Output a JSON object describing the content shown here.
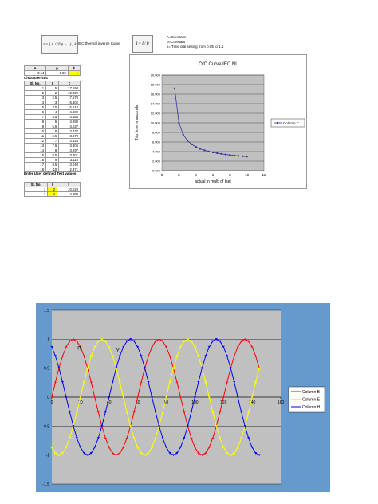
{
  "formulas": {
    "inverse_formula": "t = ( A / (I^p − 1) ) k",
    "inverse_label": "IEC thermal inverse Curve",
    "simple_formula": "I = I / Ir",
    "constants_note": [
      "A=Constant",
      "p=Constant",
      "k= Time dial setting from 0.05 to 1.1"
    ]
  },
  "params_table": {
    "headers": [
      "A",
      "p",
      "k"
    ],
    "values": [
      "0.14",
      "0.02",
      "1"
    ]
  },
  "char_table": {
    "label": "Characteristic",
    "headers": [
      "Sl. No.",
      "I",
      "t"
    ],
    "rows": [
      [
        "1",
        "1.5",
        "17.194"
      ],
      [
        "2",
        "2",
        "10.029"
      ],
      [
        "3",
        "2.5",
        "7.570"
      ],
      [
        "4",
        "3",
        "6.302"
      ],
      [
        "5",
        "3.5",
        "5.518"
      ],
      [
        "6",
        "4",
        "4.980"
      ],
      [
        "7",
        "4.5",
        "4.584"
      ],
      [
        "8",
        "5",
        "4.280"
      ],
      [
        "9",
        "5.5",
        "4.037"
      ],
      [
        "10",
        "6",
        "3.837"
      ],
      [
        "11",
        "6.5",
        "3.670"
      ],
      [
        "12",
        "7",
        "3.528"
      ],
      [
        "13",
        "7.5",
        "3.405"
      ],
      [
        "14",
        "8",
        "3.297"
      ],
      [
        "15",
        "8.5",
        "3.201"
      ],
      [
        "16",
        "9",
        "3.116"
      ],
      [
        "17",
        "9.5",
        "3.040"
      ],
      [
        "18",
        "10",
        "2.971"
      ]
    ]
  },
  "user_table": {
    "label": "Enter User defined Test values",
    "headers": [
      "Sl. No.",
      "I",
      "t"
    ],
    "rows": [
      [
        "1",
        "2",
        "10.029"
      ],
      [
        "2",
        "4",
        "4.980"
      ]
    ]
  },
  "chart_data": [
    {
      "type": "line",
      "title": "O/C Curve IEC NI",
      "xlabel": "actual in multi of Iset",
      "ylabel": "Trip time in seconds",
      "xlim": [
        0,
        12
      ],
      "ylim": [
        0,
        20
      ],
      "xticks": [
        "0",
        "2",
        "4",
        "6",
        "8",
        "10",
        "12"
      ],
      "yticks": [
        "0.000",
        "2.000",
        "4.000",
        "6.000",
        "8.000",
        "10.000",
        "12.000",
        "14.000",
        "16.000",
        "18.000",
        "20.000"
      ],
      "legend": "right",
      "grid": true,
      "series": [
        {
          "name": "Column C",
          "color": "#333399",
          "x": [
            1.5,
            2,
            2.5,
            3,
            3.5,
            4,
            4.5,
            5,
            5.5,
            6,
            6.5,
            7,
            7.5,
            8,
            8.5,
            9,
            9.5,
            10
          ],
          "y": [
            17.194,
            10.029,
            7.57,
            6.302,
            5.518,
            4.98,
            4.584,
            4.28,
            4.037,
            3.837,
            3.67,
            3.528,
            3.405,
            3.297,
            3.201,
            3.116,
            3.04,
            2.971
          ]
        }
      ]
    },
    {
      "type": "line",
      "title": "",
      "xlim": [
        0,
        160
      ],
      "ylim": [
        -1.5,
        1.5
      ],
      "xticks": [
        "0",
        "20",
        "40",
        "60",
        "80",
        "100",
        "120",
        "140",
        "160"
      ],
      "yticks": [
        "-1.5",
        "-1",
        "-0.5",
        "0",
        "0.5",
        "1",
        "1.5"
      ],
      "grid": true,
      "legend": "right",
      "background": "#c0c0c0",
      "frame_color": "#6699cc",
      "annotations": [
        {
          "text": "R",
          "x": 18,
          "y": 0.82
        },
        {
          "text": "Y",
          "x": 45,
          "y": 0.78
        }
      ],
      "x_samples": {
        "start": 0,
        "end": 145,
        "step": 2.5
      },
      "series": [
        {
          "name": "Column B",
          "color": "#ff0000",
          "marker": "+",
          "amplitude": 1,
          "period": 60,
          "phase_deg": 0
        },
        {
          "name": "Column E",
          "color": "#ffff00",
          "marker": "x",
          "amplitude": 1,
          "period": 60,
          "phase_deg": 240
        },
        {
          "name": "Column H",
          "color": "#0000ff",
          "marker": "triangle",
          "amplitude": 1,
          "period": 60,
          "phase_deg": 120
        }
      ]
    }
  ]
}
